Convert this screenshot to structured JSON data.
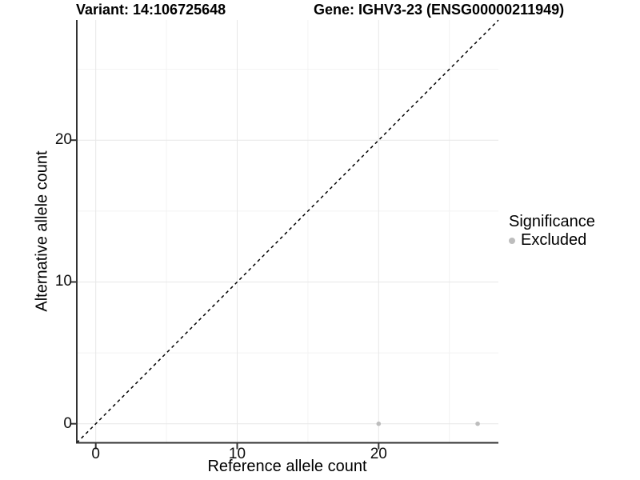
{
  "chart": {
    "title_left": "Variant: 14:106725648",
    "title_right": "Gene: IGHV3-23 (ENSG00000211949)",
    "xlabel": "Reference allele count",
    "ylabel": "Alternative allele count"
  },
  "legend": {
    "title": "Significance",
    "entries": [
      {
        "label": "Excluded",
        "color": "#bdbdbd"
      }
    ]
  },
  "chart_data": {
    "type": "scatter",
    "title": "Variant: 14:106725648 — Gene: IGHV3-23 (ENSG00000211949)",
    "xlabel": "Reference allele count",
    "ylabel": "Alternative allele count",
    "x_ticks": [
      0,
      10,
      20
    ],
    "y_ticks": [
      0,
      10,
      20
    ],
    "minor_grid": [
      5,
      15,
      25
    ],
    "xlim": [
      -1.35,
      28.45
    ],
    "ylim": [
      -1.35,
      28.45
    ],
    "grid": "major+minor",
    "legend_position": "right",
    "reference_line": {
      "type": "identity y=x",
      "style": "dashed",
      "color": "#000000"
    },
    "series": [
      {
        "name": "Excluded",
        "color": "#bdbdbd",
        "points": [
          {
            "x": 20,
            "y": 0
          },
          {
            "x": 27,
            "y": 0
          }
        ]
      }
    ]
  },
  "colors": {
    "axis_line": "#333333",
    "major_grid": "#e7e7e7",
    "minor_grid": "#f2f2f2",
    "point": "#bdbdbd",
    "background": "#ffffff"
  }
}
